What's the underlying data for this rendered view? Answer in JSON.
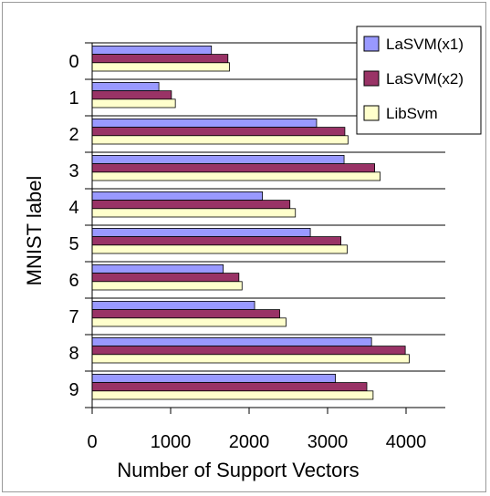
{
  "chart_data": {
    "type": "bar",
    "orientation": "horizontal",
    "categories": [
      "0",
      "1",
      "2",
      "3",
      "4",
      "5",
      "6",
      "7",
      "8",
      "9"
    ],
    "series": [
      {
        "name": "LaSVM(x1)",
        "color": "#9999ff",
        "values": [
          1520,
          850,
          2860,
          3210,
          2170,
          2780,
          1670,
          2070,
          3560,
          3100
        ]
      },
      {
        "name": "LaSVM(x2)",
        "color": "#993366",
        "values": [
          1730,
          1010,
          3220,
          3600,
          2520,
          3170,
          1870,
          2390,
          3990,
          3500
        ]
      },
      {
        "name": "LibSvm",
        "color": "#ffffcc",
        "values": [
          1750,
          1060,
          3260,
          3670,
          2590,
          3250,
          1910,
          2470,
          4040,
          3580
        ]
      }
    ],
    "xlabel": "Number of Support Vectors",
    "ylabel": "MNIST label",
    "xlim": [
      0,
      4500
    ],
    "xticks": [
      "0",
      "1000",
      "2000",
      "3000",
      "4000"
    ],
    "grid": "horizontal category separators",
    "legend_position": "top-right"
  }
}
